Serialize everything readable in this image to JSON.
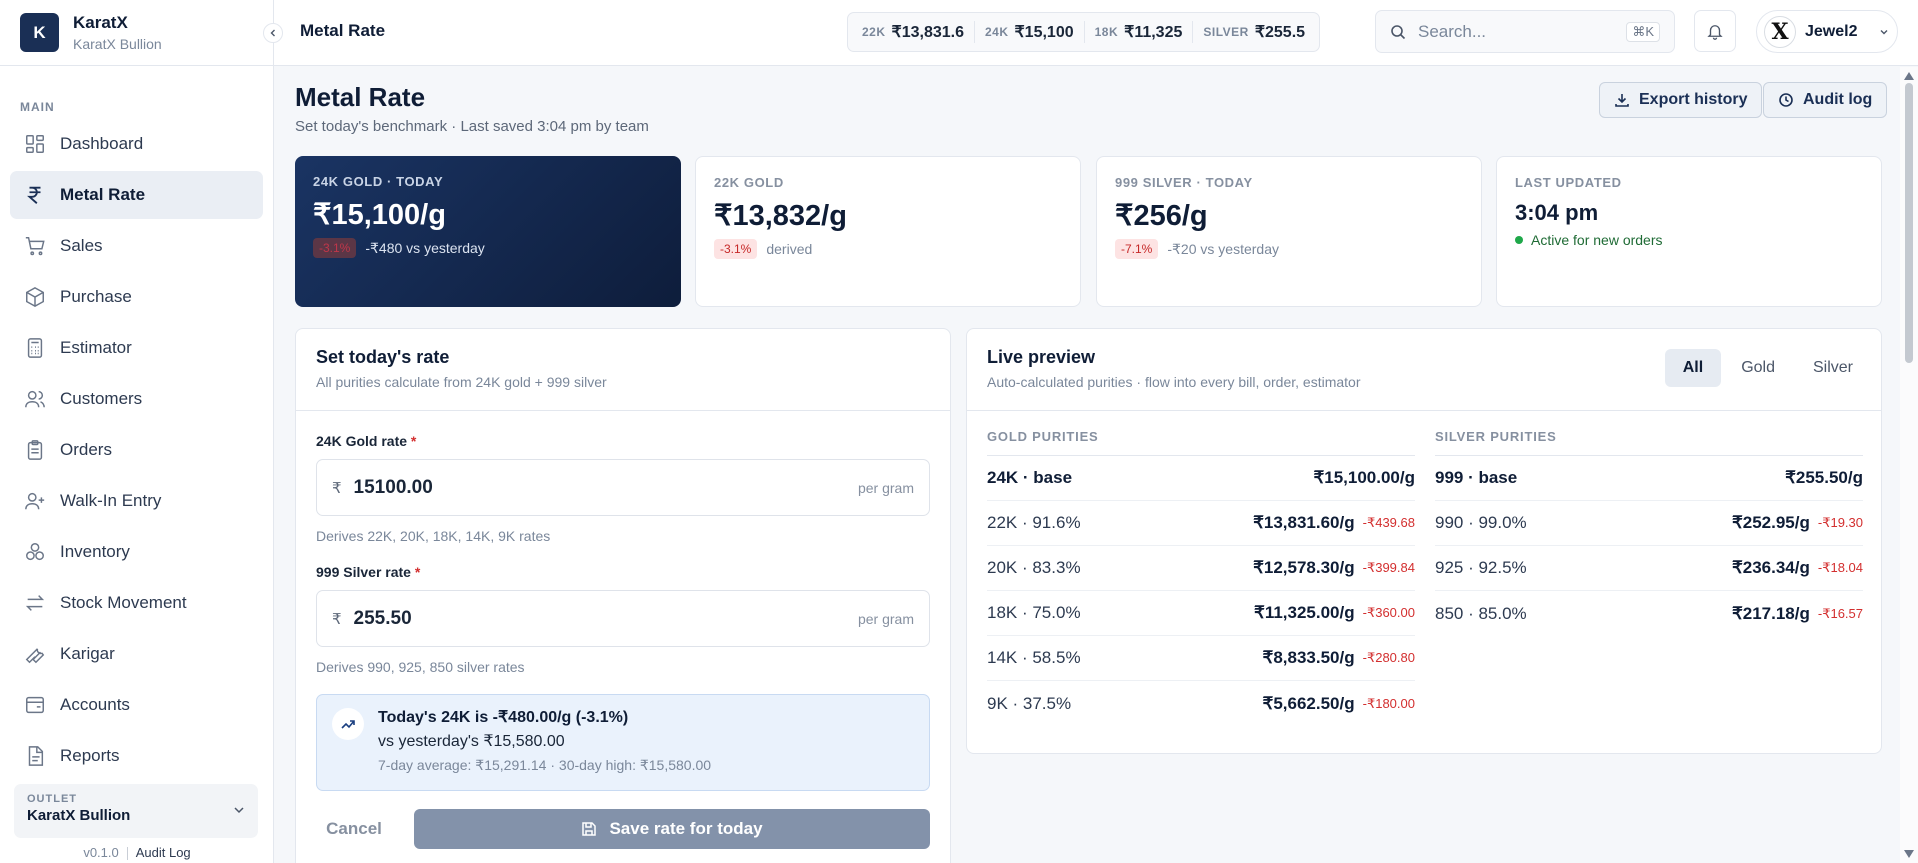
{
  "brand": {
    "initial": "K",
    "name": "KaratX",
    "sub": "KaratX Bullion"
  },
  "sidebar": {
    "section": "MAIN",
    "items": [
      {
        "label": "Dashboard",
        "icon": "dashboard-icon"
      },
      {
        "label": "Metal Rate",
        "icon": "rupee-icon",
        "active": true
      },
      {
        "label": "Sales",
        "icon": "cart-icon"
      },
      {
        "label": "Purchase",
        "icon": "package-icon"
      },
      {
        "label": "Estimator",
        "icon": "calculator-icon"
      },
      {
        "label": "Customers",
        "icon": "users-icon"
      },
      {
        "label": "Orders",
        "icon": "clipboard-icon"
      },
      {
        "label": "Walk-In Entry",
        "icon": "user-plus-icon"
      },
      {
        "label": "Inventory",
        "icon": "boxes-icon"
      },
      {
        "label": "Stock Movement",
        "icon": "arrows-icon"
      },
      {
        "label": "Karigar",
        "icon": "wrench-icon"
      },
      {
        "label": "Accounts",
        "icon": "wallet-icon"
      },
      {
        "label": "Reports",
        "icon": "report-icon"
      }
    ],
    "outlet": {
      "label": "OUTLET",
      "name": "KaratX Bullion"
    },
    "version": "v0.1.0",
    "audit_link": "Audit Log"
  },
  "topbar": {
    "title": "Metal Rate",
    "ticker": [
      {
        "k": "22K",
        "v": "₹13,831.6"
      },
      {
        "k": "24K",
        "v": "₹15,100"
      },
      {
        "k": "18K",
        "v": "₹11,325"
      },
      {
        "k": "SILVER",
        "v": "₹255.5"
      }
    ],
    "search_placeholder": "Search...",
    "search_kbd": "⌘K",
    "user": {
      "initial": "X",
      "name": "Jewel2"
    }
  },
  "page": {
    "title": "Metal Rate",
    "subtitle": "Set today's benchmark · Last saved 3:04 pm by team",
    "export_label": "Export history",
    "audit_label": "Audit log"
  },
  "cards": [
    {
      "label": "24K GOLD · TODAY",
      "value": "₹15,100/g",
      "pill": "-3.1%",
      "note": "-₹480 vs yesterday"
    },
    {
      "label": "22K GOLD",
      "value": "₹13,832/g",
      "pill": "-3.1%",
      "note": "derived"
    },
    {
      "label": "999 SILVER · TODAY",
      "value": "₹256/g",
      "pill": "-7.1%",
      "note": "-₹20 vs yesterday"
    },
    {
      "label": "LAST UPDATED",
      "value": "3:04 pm",
      "note": "Active for new orders"
    }
  ],
  "form": {
    "title": "Set today's rate",
    "subtitle": "All purities calculate from 24K gold + 999 silver",
    "gold_label": "24K Gold rate",
    "gold_value": "15100.00",
    "gold_hint": "Derives 22K, 20K, 18K, 14K, 9K rates",
    "silver_label": "999 Silver rate",
    "silver_value": "255.50",
    "silver_hint": "Derives 990, 925, 850 silver rates",
    "currency": "₹",
    "unit": "per gram",
    "required_mark": "*",
    "callout_line1": "Today's 24K is -₹480.00/g (-3.1%)",
    "callout_line2": "vs yesterday's ₹15,580.00",
    "callout_line3": "7-day average: ₹15,291.14 · 30-day high: ₹15,580.00",
    "cancel_label": "Cancel",
    "save_label": "Save rate for today"
  },
  "preview": {
    "title": "Live preview",
    "subtitle": "Auto-calculated purities · flow into every bill, order, estimator",
    "tabs": [
      "All",
      "Gold",
      "Silver"
    ],
    "active_tab": "All",
    "gold_header": "GOLD PURITIES",
    "silver_header": "SILVER PURITIES",
    "gold": [
      {
        "name": "24K · base",
        "value": "₹15,100.00/g",
        "delta": "",
        "base": true
      },
      {
        "name": "22K · 91.6%",
        "value": "₹13,831.60/g",
        "delta": "-₹439.68"
      },
      {
        "name": "20K · 83.3%",
        "value": "₹12,578.30/g",
        "delta": "-₹399.84"
      },
      {
        "name": "18K · 75.0%",
        "value": "₹11,325.00/g",
        "delta": "-₹360.00"
      },
      {
        "name": "14K · 58.5%",
        "value": "₹8,833.50/g",
        "delta": "-₹280.80"
      },
      {
        "name": "9K · 37.5%",
        "value": "₹5,662.50/g",
        "delta": "-₹180.00"
      }
    ],
    "silver": [
      {
        "name": "999 · base",
        "value": "₹255.50/g",
        "delta": "",
        "base": true
      },
      {
        "name": "990 · 99.0%",
        "value": "₹252.95/g",
        "delta": "-₹19.30"
      },
      {
        "name": "925 · 92.5%",
        "value": "₹236.34/g",
        "delta": "-₹18.04"
      },
      {
        "name": "850 · 85.0%",
        "value": "₹217.18/g",
        "delta": "-₹16.57"
      }
    ]
  },
  "colors": {
    "navy": "#1a2f55",
    "negative": "#d32f2f",
    "positive": "#1fa84a"
  }
}
